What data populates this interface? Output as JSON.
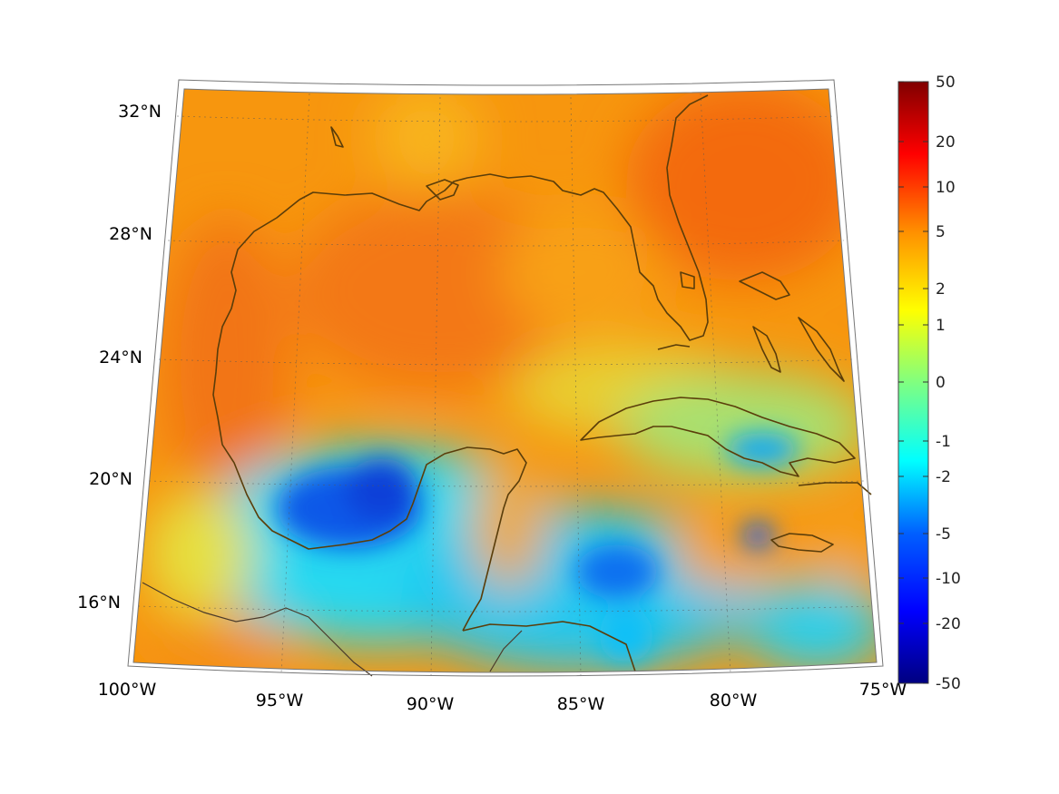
{
  "map": {
    "lat_labels": [
      "32°N",
      "28°N",
      "24°N",
      "20°N",
      "16°N"
    ],
    "lon_labels": [
      "100°W",
      "95°W",
      "90°W",
      "85°W",
      "80°W",
      "75°W"
    ]
  },
  "colorbar": {
    "tick_labels": [
      "50",
      "20",
      "10",
      "5",
      "2",
      "1",
      "0",
      "-1",
      "-2",
      "-5",
      "-10",
      "-20",
      "-50"
    ],
    "colormap": "jet",
    "colors": [
      "#000080",
      "#0000ff",
      "#0080ff",
      "#00ffff",
      "#80ff80",
      "#ffff00",
      "#ff8000",
      "#ff0000",
      "#800000"
    ]
  }
}
